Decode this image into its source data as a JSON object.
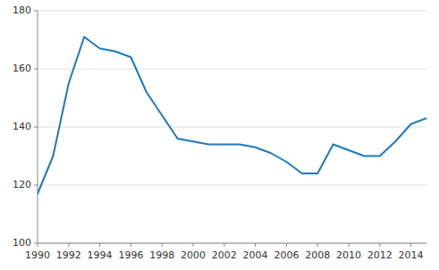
{
  "chart_data": {
    "type": "line",
    "x": [
      1990,
      1991,
      1992,
      1993,
      1994,
      1995,
      1996,
      1997,
      1998,
      1999,
      2000,
      2001,
      2002,
      2003,
      2004,
      2005,
      2006,
      2007,
      2008,
      2009,
      2010,
      2011,
      2012,
      2013,
      2014,
      2015
    ],
    "values": [
      117,
      130,
      155,
      171,
      167,
      166,
      164,
      152,
      144,
      136,
      135,
      134,
      134,
      134,
      133,
      131,
      128,
      124,
      124,
      134,
      132,
      130,
      130,
      135,
      141,
      143
    ],
    "color": "#1a7abf",
    "xlim": [
      1990,
      2015
    ],
    "ylim": [
      100,
      180
    ],
    "xticks": [
      1990,
      1992,
      1994,
      1996,
      1998,
      2000,
      2002,
      2004,
      2006,
      2008,
      2010,
      2012,
      2014
    ],
    "yticks": [
      100,
      120,
      140,
      160,
      180
    ],
    "grid": true
  }
}
